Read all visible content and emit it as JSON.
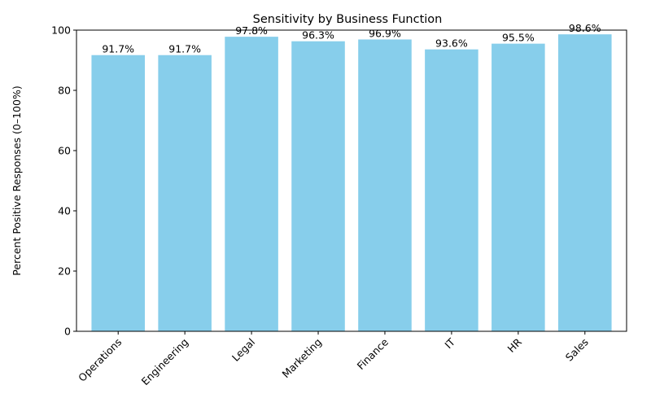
{
  "chart_data": {
    "type": "bar",
    "title": "Sensitivity by Business Function",
    "xlabel": "",
    "ylabel": "Percent Positive Responses (0–100%)",
    "categories": [
      "Operations",
      "Engineering",
      "Legal",
      "Marketing",
      "Finance",
      "IT",
      "HR",
      "Sales"
    ],
    "values": [
      91.7,
      91.7,
      97.8,
      96.3,
      96.9,
      93.6,
      95.5,
      98.6
    ],
    "value_labels": [
      "91.7%",
      "91.7%",
      "97.8%",
      "96.3%",
      "96.9%",
      "93.6%",
      "95.5%",
      "98.6%"
    ],
    "ylim": [
      0,
      100
    ],
    "yticks": [
      0,
      20,
      40,
      60,
      80,
      100
    ],
    "ytick_labels": [
      "0",
      "20",
      "40",
      "60",
      "80",
      "100"
    ],
    "grid": false,
    "legend": "none",
    "bar_color": "#87CEEB"
  }
}
